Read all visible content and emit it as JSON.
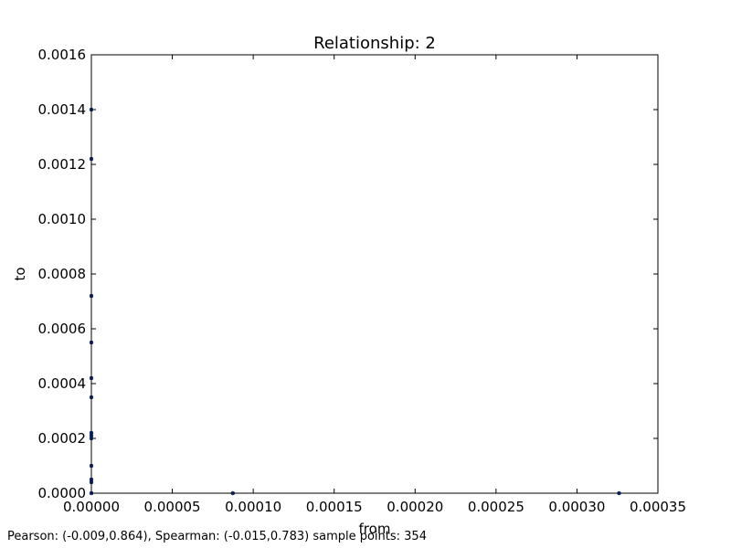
{
  "chart_data": {
    "type": "scatter",
    "title": "Relationship: 2",
    "xlabel": "from",
    "ylabel": "to",
    "xlim": [
      0,
      0.00035
    ],
    "ylim": [
      0,
      0.0016
    ],
    "x_ticks": [
      "0.00000",
      "0.00005",
      "0.00010",
      "0.00015",
      "0.00020",
      "0.00025",
      "0.00030",
      "0.00035"
    ],
    "y_ticks": [
      "0.0000",
      "0.0002",
      "0.0004",
      "0.0006",
      "0.0008",
      "0.0010",
      "0.0012",
      "0.0014",
      "0.0016"
    ],
    "grid": false,
    "marker_color": "#1f3c88",
    "points": [
      {
        "x": 0.0,
        "y": 0.0014
      },
      {
        "x": 0.0,
        "y": 0.00122
      },
      {
        "x": 0.0,
        "y": 0.00072
      },
      {
        "x": 0.0,
        "y": 0.00055
      },
      {
        "x": 0.0,
        "y": 0.00042
      },
      {
        "x": 0.0,
        "y": 0.00035
      },
      {
        "x": 0.0,
        "y": 0.00022
      },
      {
        "x": 0.0,
        "y": 0.00021
      },
      {
        "x": 0.0,
        "y": 0.0002
      },
      {
        "x": 0.0,
        "y": 0.0001
      },
      {
        "x": 0.0,
        "y": 5e-05
      },
      {
        "x": 0.0,
        "y": 4e-05
      },
      {
        "x": 0.0,
        "y": 0.0
      },
      {
        "x": 8.74e-05,
        "y": 0.0
      },
      {
        "x": 0.000326,
        "y": 0.0
      }
    ]
  },
  "footer": {
    "stats": "Pearson: (-0.009,0.864), Spearman: (-0.015,0.783) sample points: 354"
  }
}
